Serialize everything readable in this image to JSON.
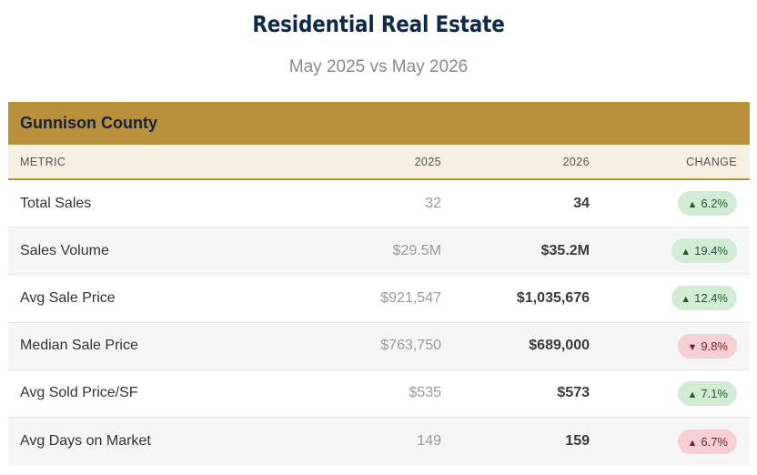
{
  "title": "Residential Real Estate",
  "subtitle": "May 2025 vs May 2026",
  "county": "Gunnison County",
  "columns": {
    "metric": "METRIC",
    "y2025": "2025",
    "y2026": "2026",
    "change": "CHANGE"
  },
  "rows": [
    {
      "metric": "Total Sales",
      "v2025": "32",
      "v2026": "34",
      "change": "6.2%",
      "arrow": "▲",
      "status": "good"
    },
    {
      "metric": "Sales Volume",
      "v2025": "$29.5M",
      "v2026": "$35.2M",
      "change": "19.4%",
      "arrow": "▲",
      "status": "good"
    },
    {
      "metric": "Avg Sale Price",
      "v2025": "$921,547",
      "v2026": "$1,035,676",
      "change": "12.4%",
      "arrow": "▲",
      "status": "good"
    },
    {
      "metric": "Median Sale Price",
      "v2025": "$763,750",
      "v2026": "$689,000",
      "change": "9.8%",
      "arrow": "▼",
      "status": "bad"
    },
    {
      "metric": "Avg Sold Price/SF",
      "v2025": "$535",
      "v2026": "$573",
      "change": "7.1%",
      "arrow": "▲",
      "status": "good"
    },
    {
      "metric": "Avg Days on Market",
      "v2025": "149",
      "v2026": "159",
      "change": "6.7%",
      "arrow": "▲",
      "status": "bad"
    }
  ],
  "colors": {
    "header_gold": "#b8913a",
    "title_navy": "#0f2a4a",
    "good_bg": "#d2ecd5",
    "bad_bg": "#f6d0d3"
  }
}
